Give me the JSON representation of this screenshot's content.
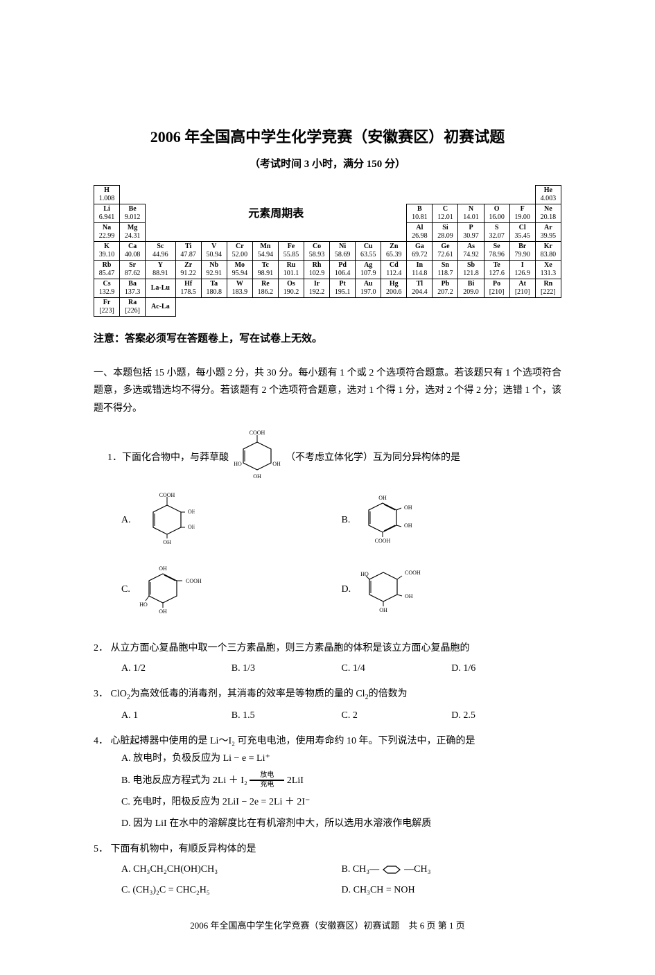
{
  "title": "2006 年全国高中学生化学竞赛（安徽赛区）初赛试题",
  "subtitle": "（考试时间 3 小时，满分 150 分）",
  "ptable_label": "元素周期表",
  "ptable": {
    "row1": [
      {
        "sym": "H",
        "m": "1.008"
      },
      null,
      null,
      null,
      null,
      null,
      null,
      null,
      null,
      null,
      null,
      null,
      null,
      null,
      null,
      null,
      null,
      {
        "sym": "He",
        "m": "4.003"
      }
    ],
    "row2": [
      {
        "sym": "Li",
        "m": "6.941"
      },
      {
        "sym": "Be",
        "m": "9.012"
      },
      null,
      null,
      null,
      null,
      null,
      null,
      null,
      null,
      null,
      null,
      {
        "sym": "B",
        "m": "10.81"
      },
      {
        "sym": "C",
        "m": "12.01"
      },
      {
        "sym": "N",
        "m": "14.01"
      },
      {
        "sym": "O",
        "m": "16.00"
      },
      {
        "sym": "F",
        "m": "19.00"
      },
      {
        "sym": "Ne",
        "m": "20.18"
      }
    ],
    "row3": [
      {
        "sym": "Na",
        "m": "22.99"
      },
      {
        "sym": "Mg",
        "m": "24.31"
      },
      null,
      null,
      null,
      null,
      null,
      null,
      null,
      null,
      null,
      null,
      {
        "sym": "Al",
        "m": "26.98"
      },
      {
        "sym": "Si",
        "m": "28.09"
      },
      {
        "sym": "P",
        "m": "30.97"
      },
      {
        "sym": "S",
        "m": "32.07"
      },
      {
        "sym": "Cl",
        "m": "35.45"
      },
      {
        "sym": "Ar",
        "m": "39.95"
      }
    ],
    "row4": [
      {
        "sym": "K",
        "m": "39.10"
      },
      {
        "sym": "Ca",
        "m": "40.08"
      },
      {
        "sym": "Sc",
        "m": "44.96"
      },
      {
        "sym": "Ti",
        "m": "47.87"
      },
      {
        "sym": "V",
        "m": "50.94"
      },
      {
        "sym": "Cr",
        "m": "52.00"
      },
      {
        "sym": "Mn",
        "m": "54.94"
      },
      {
        "sym": "Fe",
        "m": "55.85"
      },
      {
        "sym": "Co",
        "m": "58.93"
      },
      {
        "sym": "Ni",
        "m": "58.69"
      },
      {
        "sym": "Cu",
        "m": "63.55"
      },
      {
        "sym": "Zn",
        "m": "65.39"
      },
      {
        "sym": "Ga",
        "m": "69.72"
      },
      {
        "sym": "Ge",
        "m": "72.61"
      },
      {
        "sym": "As",
        "m": "74.92"
      },
      {
        "sym": "Se",
        "m": "78.96"
      },
      {
        "sym": "Br",
        "m": "79.90"
      },
      {
        "sym": "Kr",
        "m": "83.80"
      }
    ],
    "row5": [
      {
        "sym": "Rb",
        "m": "85.47"
      },
      {
        "sym": "Sr",
        "m": "87.62"
      },
      {
        "sym": "Y",
        "m": "88.91"
      },
      {
        "sym": "Zr",
        "m": "91.22"
      },
      {
        "sym": "Nb",
        "m": "92.91"
      },
      {
        "sym": "Mo",
        "m": "95.94"
      },
      {
        "sym": "Tc",
        "m": "98.91"
      },
      {
        "sym": "Ru",
        "m": "101.1"
      },
      {
        "sym": "Rh",
        "m": "102.9"
      },
      {
        "sym": "Pd",
        "m": "106.4"
      },
      {
        "sym": "Ag",
        "m": "107.9"
      },
      {
        "sym": "Cd",
        "m": "112.4"
      },
      {
        "sym": "In",
        "m": "114.8"
      },
      {
        "sym": "Sn",
        "m": "118.7"
      },
      {
        "sym": "Sb",
        "m": "121.8"
      },
      {
        "sym": "Te",
        "m": "127.6"
      },
      {
        "sym": "I",
        "m": "126.9"
      },
      {
        "sym": "Xe",
        "m": "131.3"
      }
    ],
    "row6": [
      {
        "sym": "Cs",
        "m": "132.9"
      },
      {
        "sym": "Ba",
        "m": "137.3"
      },
      {
        "sym": "La-Lu",
        "m": ""
      },
      {
        "sym": "Hf",
        "m": "178.5"
      },
      {
        "sym": "Ta",
        "m": "180.8"
      },
      {
        "sym": "W",
        "m": "183.9"
      },
      {
        "sym": "Re",
        "m": "186.2"
      },
      {
        "sym": "Os",
        "m": "190.2"
      },
      {
        "sym": "Ir",
        "m": "192.2"
      },
      {
        "sym": "Pt",
        "m": "195.1"
      },
      {
        "sym": "Au",
        "m": "197.0"
      },
      {
        "sym": "Hg",
        "m": "200.6"
      },
      {
        "sym": "Tl",
        "m": "204.4"
      },
      {
        "sym": "Pb",
        "m": "207.2"
      },
      {
        "sym": "Bi",
        "m": "209.0"
      },
      {
        "sym": "Po",
        "m": "[210]"
      },
      {
        "sym": "At",
        "m": "[210]"
      },
      {
        "sym": "Rn",
        "m": "[222]"
      }
    ],
    "row7": [
      {
        "sym": "Fr",
        "m": "[223]"
      },
      {
        "sym": "Ra",
        "m": "[226]"
      },
      {
        "sym": "Ac-La",
        "m": ""
      },
      null,
      null,
      null,
      null,
      null,
      null,
      null,
      null,
      null,
      null,
      null,
      null,
      null,
      null,
      null
    ]
  },
  "notice": "注意：答案必须写在答题卷上，写在试卷上无效。",
  "section1": "一、本题包括 15 小题，每小题 2 分，共 30 分。每小题有 1 个或 2 个选项符合题意。若该题只有 1 个选项符合题意，多选或错选均不得分。若该题有 2 个选项符合题意，选对 1 个得 1 分，选对 2 个得 2 分；选错 1 个，该题不得分。",
  "q1": {
    "num": "1．",
    "pre": "下面化合物中，与莽草酸",
    "post": "（不考虑立体化学）互为同分异构体的是",
    "formula_labels": {
      "top": "COOH",
      "l": "HO",
      "r": "OH",
      "b": "OH"
    },
    "opts": [
      "A.",
      "B.",
      "C.",
      "D."
    ]
  },
  "q2": {
    "num": "2．",
    "text": "从立方面心复晶胞中取一个三方素晶胞，则三方素晶胞的体积是该立方面心复晶胞的",
    "opts": [
      "A. 1/2",
      "B. 1/3",
      "C. 1/4",
      "D. 1/6"
    ]
  },
  "q3": {
    "num": "3．",
    "pre": "ClO",
    "sub": "2",
    "mid": "为高效低毒的消毒剂，其消毒的效率是等物质的量的 Cl",
    "sub2": "2",
    "post": "的倍数为",
    "opts": [
      "A. 1",
      "B. 1.5",
      "C. 2",
      "D. 2.5"
    ]
  },
  "q4": {
    "num": "4．",
    "text": "心脏起搏器中使用的是 Li～I₂ 可充电电池，使用寿命约 10 年。下列说法中，正确的是",
    "optA": "A. 放电时，负极反应为 Li − e = Li⁺",
    "optB_pre": "B. 电池反应方程式为 2Li ＋ I₂",
    "optB_top": "放电",
    "optB_bot": "充电",
    "optB_post": " 2LiI",
    "optC": "C. 充电时，阳极反应为 2LiI − 2e = 2Li ＋ 2I⁻",
    "optD": "D. 因为 LiI 在水中的溶解度比在有机溶剂中大，所以选用水溶液作电解质"
  },
  "q5": {
    "num": "5．",
    "text": "下面有机物中，有顺反异构体的是",
    "optA": "A. CH₃CH₂CH(OH)CH₃",
    "optB_pre": "B. CH₃—",
    "optB_post": "—CH₃",
    "optC": "C. (CH₃)₂C = CHC₂H₅",
    "optD": "D. CH₃CH = NOH"
  },
  "footer": "2006 年全国高中学生化学竞赛（安徽赛区）初赛试题　共 6 页 第 1 页"
}
